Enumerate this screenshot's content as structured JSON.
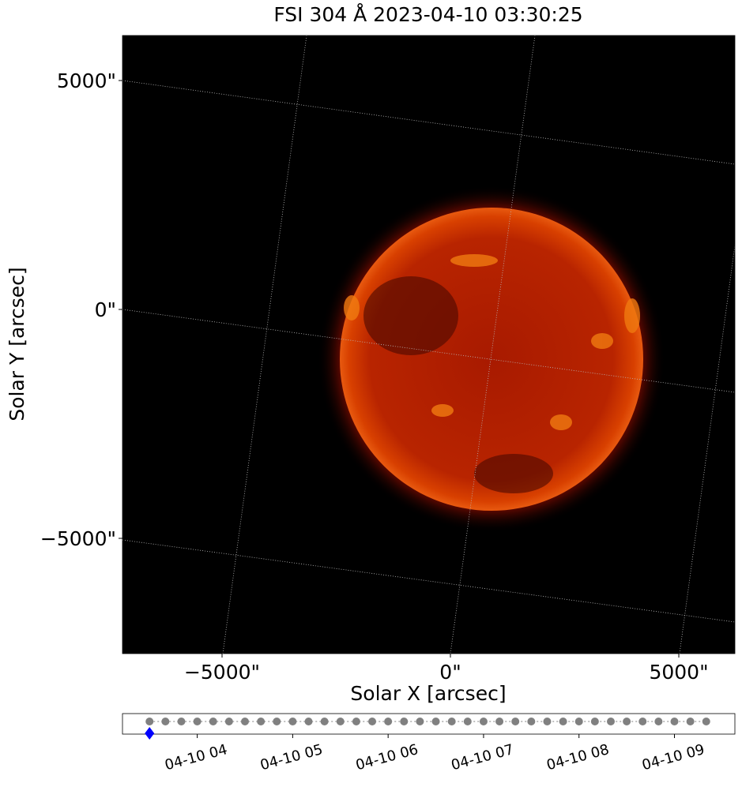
{
  "chart_data": [
    {
      "type": "image",
      "title": "FSI 304 Å 2023-04-10 03:30:25",
      "xlabel": "Solar X [arcsec]",
      "ylabel": "Solar Y [arcsec]",
      "xlim": [
        -7180,
        6228
      ],
      "ylim": [
        -7517,
        5983
      ],
      "xticks": [
        {
          "value": -5000,
          "label": "−5000\""
        },
        {
          "value": 0,
          "label": "0\""
        },
        {
          "value": 5000,
          "label": "5000\""
        }
      ],
      "yticks": [
        {
          "value": -5000,
          "label": "−5000\""
        },
        {
          "value": 0,
          "label": "0\""
        },
        {
          "value": 5000,
          "label": "5000\""
        }
      ]
    },
    {
      "type": "timeline",
      "color": "gray",
      "x": [
        "04-10 03:30",
        "04-10 03:40",
        "04-10 03:50",
        "04-10 04:00",
        "04-10 04:10",
        "04-10 04:20",
        "04-10 04:30",
        "04-10 04:40",
        "04-10 04:50",
        "04-10 05:00",
        "04-10 05:10",
        "04-10 05:20",
        "04-10 05:30",
        "04-10 05:40",
        "04-10 05:50",
        "04-10 06:00",
        "04-10 06:10",
        "04-10 06:20",
        "04-10 06:30",
        "04-10 06:40",
        "04-10 06:50",
        "04-10 07:00",
        "04-10 07:10",
        "04-10 07:20",
        "04-10 07:30",
        "04-10 07:40",
        "04-10 07:50",
        "04-10 08:00",
        "04-10 08:10",
        "04-10 08:20",
        "04-10 08:30",
        "04-10 08:40",
        "04-10 08:50",
        "04-10 09:00",
        "04-10 09:10",
        "04-10 09:20"
      ],
      "marker": {
        "x": "04-10 03:30",
        "color": "blue"
      },
      "xlim": [
        "04-10 03:13",
        "04-10 09:38"
      ],
      "xticks": [
        {
          "value": "04-10 04:00",
          "label": "04-10 04"
        },
        {
          "value": "04-10 05:00",
          "label": "04-10 05"
        },
        {
          "value": "04-10 06:00",
          "label": "04-10 06"
        },
        {
          "value": "04-10 07:00",
          "label": "04-10 07"
        },
        {
          "value": "04-10 08:00",
          "label": "04-10 08"
        },
        {
          "value": "04-10 09:00",
          "label": "04-10 09"
        }
      ]
    }
  ]
}
